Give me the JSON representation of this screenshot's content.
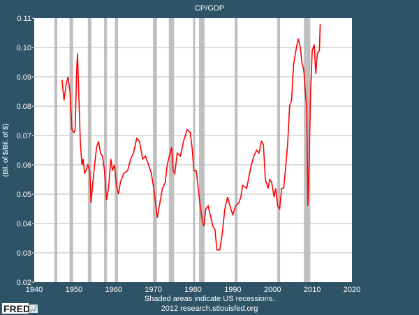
{
  "chart_data": {
    "type": "line",
    "title": "CP/GDP",
    "xlabel": "",
    "ylabel": "(Bil. of $/Bil. of $)",
    "xlim": [
      1940,
      2020
    ],
    "ylim": [
      0.02,
      0.11
    ],
    "xticks": [
      "1940",
      "1950",
      "1960",
      "1970",
      "1980",
      "1990",
      "2000",
      "2010",
      "2020"
    ],
    "yticks": [
      "0.02",
      "0.03",
      "0.04",
      "0.05",
      "0.06",
      "0.07",
      "0.08",
      "0.09",
      "0.10",
      "0.11"
    ],
    "grid": true,
    "line_color": "#ff0000",
    "recession_color": "#bfbfbf",
    "recessions": [
      [
        1945.1,
        1945.8
      ],
      [
        1948.9,
        1949.8
      ],
      [
        1953.5,
        1954.4
      ],
      [
        1957.6,
        1958.3
      ],
      [
        1960.3,
        1961.1
      ],
      [
        1969.9,
        1970.9
      ],
      [
        1973.9,
        1975.2
      ],
      [
        1980.0,
        1980.5
      ],
      [
        1981.5,
        1982.9
      ],
      [
        1990.5,
        1991.2
      ],
      [
        2001.2,
        2001.9
      ],
      [
        2007.9,
        2009.5
      ]
    ],
    "series": [
      {
        "x": [
          1947.0,
          1947.5,
          1948.0,
          1948.5,
          1949.0,
          1949.5,
          1950.0,
          1950.3,
          1950.7,
          1950.9,
          1951.2,
          1951.6,
          1952.0,
          1952.3,
          1952.7,
          1953.0,
          1953.5,
          1954.0,
          1954.3,
          1954.7,
          1955.2,
          1955.7,
          1956.2,
          1956.7,
          1957.2,
          1957.7,
          1958.2,
          1958.7,
          1959.3,
          1959.7,
          1960.2,
          1960.7,
          1961.2,
          1961.7,
          1962.5,
          1963.5,
          1964.3,
          1965.0,
          1965.8,
          1966.5,
          1967.3,
          1968.0,
          1968.8,
          1969.5,
          1970.2,
          1970.8,
          1971.0,
          1971.5,
          1972.3,
          1973.0,
          1973.5,
          1974.0,
          1974.6,
          1975.0,
          1975.4,
          1976.0,
          1976.8,
          1977.6,
          1978.5,
          1979.3,
          1979.8,
          1980.2,
          1980.8,
          1981.3,
          1981.8,
          1982.3,
          1982.7,
          1983.2,
          1983.8,
          1984.3,
          1985.0,
          1985.5,
          1986.0,
          1986.7,
          1987.3,
          1988.0,
          1988.7,
          1989.5,
          1990.0,
          1990.7,
          1991.5,
          1992.0,
          1992.5,
          1993.5,
          1994.5,
          1995.3,
          1996.0,
          1996.6,
          1997.2,
          1997.7,
          1998.2,
          1998.9,
          1999.3,
          1999.8,
          2000.4,
          2000.8,
          2001.3,
          2001.8,
          2002.3,
          2002.8,
          2003.3,
          2003.8,
          2004.3,
          2004.8,
          2005.3,
          2006.0,
          2006.5,
          2007.0,
          2007.4,
          2007.9,
          2008.3,
          2008.6,
          2008.9,
          2009.2,
          2009.6,
          2010.0,
          2010.5,
          2010.9,
          2011.3,
          2011.8,
          2012.0
        ],
        "values": [
          0.089,
          0.082,
          0.087,
          0.09,
          0.085,
          0.072,
          0.071,
          0.072,
          0.093,
          0.098,
          0.085,
          0.068,
          0.06,
          0.062,
          0.057,
          0.058,
          0.06,
          0.058,
          0.047,
          0.053,
          0.06,
          0.066,
          0.068,
          0.064,
          0.063,
          0.058,
          0.048,
          0.052,
          0.062,
          0.058,
          0.06,
          0.053,
          0.05,
          0.054,
          0.057,
          0.058,
          0.062,
          0.064,
          0.069,
          0.068,
          0.062,
          0.063,
          0.06,
          0.057,
          0.051,
          0.044,
          0.042,
          0.046,
          0.052,
          0.054,
          0.06,
          0.063,
          0.066,
          0.058,
          0.057,
          0.064,
          0.063,
          0.068,
          0.072,
          0.071,
          0.065,
          0.058,
          0.058,
          0.052,
          0.046,
          0.041,
          0.039,
          0.045,
          0.046,
          0.043,
          0.039,
          0.038,
          0.031,
          0.031,
          0.036,
          0.045,
          0.049,
          0.045,
          0.043,
          0.046,
          0.047,
          0.049,
          0.053,
          0.052,
          0.059,
          0.063,
          0.065,
          0.064,
          0.068,
          0.067,
          0.055,
          0.052,
          0.055,
          0.054,
          0.049,
          0.052,
          0.046,
          0.045,
          0.052,
          0.052,
          0.059,
          0.067,
          0.08,
          0.082,
          0.094,
          0.1,
          0.103,
          0.1,
          0.095,
          0.092,
          0.084,
          0.08,
          0.046,
          0.06,
          0.085,
          0.099,
          0.101,
          0.091,
          0.098,
          0.099,
          0.108
        ]
      }
    ]
  },
  "footer": {
    "note": "Shaded areas indicate US recessions.",
    "source": "2012 research.stlouisfed.org",
    "logo_text": "FRED"
  }
}
